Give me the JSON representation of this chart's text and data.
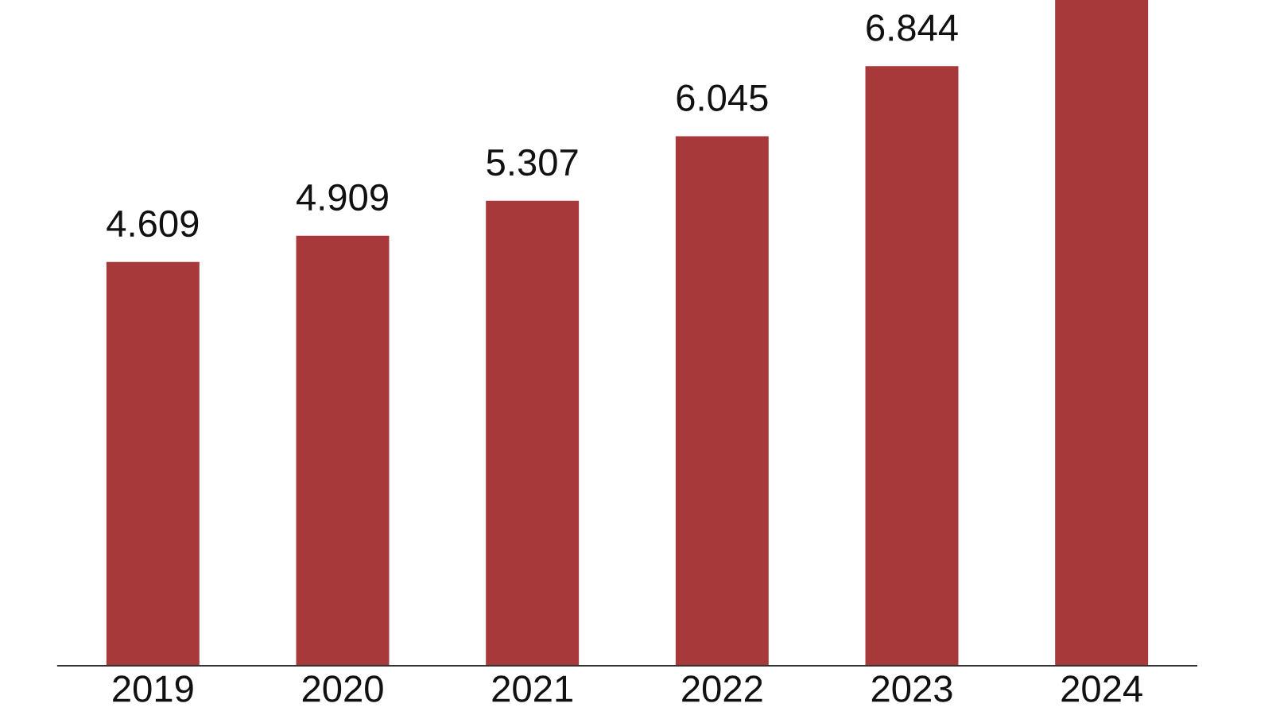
{
  "chart_data": {
    "type": "bar",
    "categories": [
      "2019",
      "2020",
      "2021",
      "2022",
      "2023",
      "2024"
    ],
    "values": [
      4.609,
      4.909,
      5.307,
      6.045,
      6.844,
      7.6
    ],
    "color": "#a8393b",
    "value_labels": [
      "4.609",
      "4.909",
      "5.307",
      "6.045",
      "6.844",
      null
    ],
    "ylim": [
      0,
      7.6
    ],
    "tick_labels": "x"
  }
}
